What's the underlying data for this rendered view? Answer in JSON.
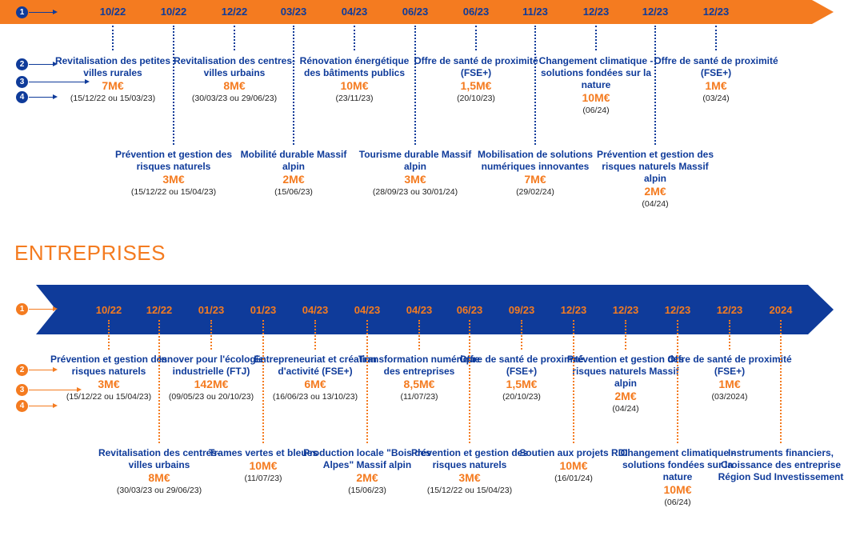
{
  "colors": {
    "orange": "#f47b20",
    "navy": "#0f3b9a",
    "white": "#ffffff"
  },
  "top": {
    "legend": [
      "1",
      "2",
      "3",
      "4"
    ],
    "dates": [
      "10/22",
      "10/22",
      "12/22",
      "03/23",
      "04/23",
      "06/23",
      "06/23",
      "11/23",
      "12/23",
      "12/23",
      "12/23"
    ],
    "upper": [
      {
        "title": "Revitalisation des petites villes rurales",
        "amount": "7M€",
        "dates": "(15/12/22 ou 15/03/23)"
      },
      {
        "title": "Revitalisation des centres-villes urbains",
        "amount": "8M€",
        "dates": "(30/03/23 ou 29/06/23)"
      },
      {
        "title": "Rénovation énergétique des bâtiments publics",
        "amount": "10M€",
        "dates": "(23/11/23)"
      },
      {
        "title": "Offre de santé de proximité (FSE+)",
        "amount": "1,5M€",
        "dates": "(20/10/23)"
      },
      {
        "title": "Changement climatique - solutions fondées sur la nature",
        "amount": "10M€",
        "dates": "(06/24)"
      },
      {
        "title": "Offre de santé de proximité (FSE+)",
        "amount": "1M€",
        "dates": "(03/24)"
      }
    ],
    "lower": [
      {
        "title": "Prévention et gestion des risques naturels",
        "amount": "3M€",
        "dates": "(15/12/22 ou 15/04/23)"
      },
      {
        "title": "Mobilité durable Massif alpin",
        "amount": "2M€",
        "dates": "(15/06/23)"
      },
      {
        "title": "Tourisme durable Massif alpin",
        "amount": "3M€",
        "dates": "(28/09/23 ou 30/01/24)"
      },
      {
        "title": "Mobilisation de solutions numériques innovantes",
        "amount": "7M€",
        "dates": "(29/02/24)"
      },
      {
        "title": "Prévention et gestion des risques naturels Massif alpin",
        "amount": "2M€",
        "dates": "(04/24)"
      }
    ]
  },
  "section_title": "ENTREPRISES",
  "bottom": {
    "legend": [
      "1",
      "2",
      "3",
      "4"
    ],
    "dates": [
      "10/22",
      "12/22",
      "01/23",
      "01/23",
      "04/23",
      "04/23",
      "04/23",
      "06/23",
      "09/23",
      "12/23",
      "12/23",
      "12/23",
      "12/23",
      "2024"
    ],
    "upper": [
      {
        "title": "Prévention et gestion des risques naturels",
        "amount": "3M€",
        "dates": "(15/12/22 ou 15/04/23)"
      },
      {
        "title": "Innover pour l'écologie industrielle (FTJ)",
        "amount": "142M€",
        "dates": "(09/05/23 ou 20/10/23)"
      },
      {
        "title": "Entrepreneuriat et création d'activité (FSE+)",
        "amount": "6M€",
        "dates": "(16/06/23 ou 13/10/23)"
      },
      {
        "title": "Transformation numérique des entreprises",
        "amount": "8,5M€",
        "dates": "(11/07/23)"
      },
      {
        "title": "Offre de santé de proximité (FSE+)",
        "amount": "1,5M€",
        "dates": "(20/10/23)"
      },
      {
        "title": "Prévention et gestion des risques naturels Massif alpin",
        "amount": "2M€",
        "dates": "(04/24)"
      },
      {
        "title": "Offre de santé de proximité (FSE+)",
        "amount": "1M€",
        "dates": "(03/2024)"
      }
    ],
    "lower": [
      {
        "title": "Revitalisation des centres-villes urbains",
        "amount": "8M€",
        "dates": "(30/03/23 ou 29/06/23)"
      },
      {
        "title": "Trames vertes et bleues",
        "amount": "10M€",
        "dates": "(11/07/23)"
      },
      {
        "title": "Production locale \"Bois des Alpes\" Massif alpin",
        "amount": "2M€",
        "dates": "(15/06/23)"
      },
      {
        "title": "Prévention et gestion des risques naturels",
        "amount": "3M€",
        "dates": "(15/12/22 ou 15/04/23)"
      },
      {
        "title": "Soutien aux projets RDI",
        "amount": "10M€",
        "dates": "(16/01/24)"
      },
      {
        "title": "Changement climatique - solutions fondées sur la nature",
        "amount": "10M€",
        "dates": "(06/24)"
      },
      {
        "title": "Instruments financiers, Croissance des entreprise Région Sud Investissement",
        "amount": "",
        "dates": ""
      }
    ]
  }
}
